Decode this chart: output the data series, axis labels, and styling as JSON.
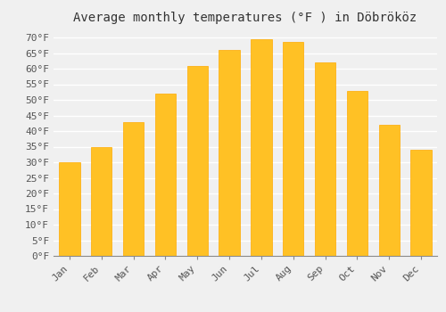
{
  "title": "Average monthly temperatures (°F ) in Döbrököz",
  "months": [
    "Jan",
    "Feb",
    "Mar",
    "Apr",
    "May",
    "Jun",
    "Jul",
    "Aug",
    "Sep",
    "Oct",
    "Nov",
    "Dec"
  ],
  "values": [
    30,
    35,
    43,
    52,
    61,
    66,
    69.5,
    68.5,
    62,
    53,
    42,
    34
  ],
  "bar_color_top": "#FFC125",
  "bar_color_bottom": "#FFAA00",
  "ylim": [
    0,
    72
  ],
  "yticks": [
    0,
    5,
    10,
    15,
    20,
    25,
    30,
    35,
    40,
    45,
    50,
    55,
    60,
    65,
    70
  ],
  "background_color": "#F0F0F0",
  "plot_bg_color": "#F0F0F0",
  "grid_color": "#FFFFFF",
  "title_fontsize": 10,
  "tick_fontsize": 8,
  "font_family": "monospace"
}
